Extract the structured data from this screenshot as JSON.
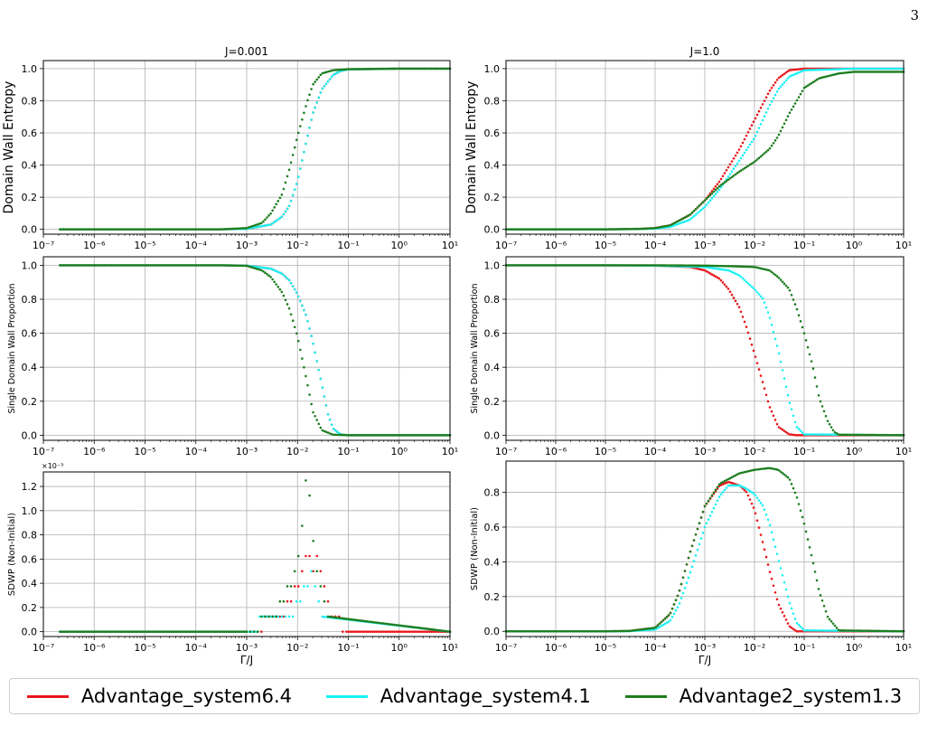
{
  "page_number": "3",
  "colors": {
    "Advantage_system6.4": "#e8161b",
    "Advantage_system4.1": "#19f1f4",
    "Advantage2_system1.3": "#1d7d1f",
    "grid": "#b0b0b0"
  },
  "legend": {
    "items": [
      {
        "label": "Advantage_system6.4",
        "color": "#e8161b"
      },
      {
        "label": "Advantage_system4.1",
        "color": "#19f1f4"
      },
      {
        "label": "Advantage2_system1.3",
        "color": "#1d7d1f"
      }
    ]
  },
  "chart_data": [
    {
      "type": "scatter",
      "panel": "row1-left",
      "title": "J=0.001",
      "xlabel": "",
      "ylabel": "Domain Wall Entropy",
      "xscale": "log",
      "xlim": [
        1e-07,
        10
      ],
      "ylim": [
        -0.03,
        1.05
      ],
      "yticks": [
        0.0,
        0.2,
        0.4,
        0.6,
        0.8,
        1.0
      ],
      "grid": true,
      "series": [
        {
          "name": "Advantage_system6.4",
          "x": [
            2e-07,
            1e-05,
            0.0003,
            0.001,
            0.003,
            0.005,
            0.007,
            0.01,
            0.015,
            0.02,
            0.03,
            0.05,
            0.07,
            0.1,
            1,
            10
          ],
          "y": [
            0,
            0,
            0,
            0.003,
            0.03,
            0.08,
            0.15,
            0.3,
            0.55,
            0.72,
            0.87,
            0.96,
            0.985,
            0.995,
            1.0,
            1.0
          ]
        },
        {
          "name": "Advantage_system4.1",
          "x": [
            2e-07,
            1e-05,
            0.0003,
            0.001,
            0.003,
            0.005,
            0.007,
            0.01,
            0.015,
            0.02,
            0.03,
            0.05,
            0.07,
            0.1,
            1,
            10
          ],
          "y": [
            0,
            0,
            0,
            0.003,
            0.03,
            0.08,
            0.15,
            0.3,
            0.55,
            0.72,
            0.87,
            0.96,
            0.985,
            0.995,
            1.0,
            1.0
          ]
        },
        {
          "name": "Advantage2_system1.3",
          "x": [
            2e-07,
            1e-05,
            0.0003,
            0.001,
            0.002,
            0.003,
            0.005,
            0.007,
            0.01,
            0.015,
            0.02,
            0.03,
            0.05,
            0.1,
            1,
            10
          ],
          "y": [
            0,
            0,
            0,
            0.008,
            0.04,
            0.1,
            0.22,
            0.38,
            0.58,
            0.78,
            0.9,
            0.97,
            0.99,
            0.997,
            1.0,
            1.0
          ]
        }
      ]
    },
    {
      "type": "scatter",
      "panel": "row1-right",
      "title": "J=1.0",
      "xlabel": "",
      "ylabel": "Domain Wall Entropy",
      "xscale": "log",
      "xlim": [
        1e-07,
        10
      ],
      "ylim": [
        -0.03,
        1.05
      ],
      "yticks": [
        0.0,
        0.2,
        0.4,
        0.6,
        0.8,
        1.0
      ],
      "grid": true,
      "series": [
        {
          "name": "Advantage_system6.4",
          "x": [
            1e-07,
            1e-05,
            5e-05,
            0.0001,
            0.0002,
            0.0005,
            0.001,
            0.002,
            0.005,
            0.01,
            0.02,
            0.03,
            0.05,
            0.1,
            1,
            10
          ],
          "y": [
            0,
            0,
            0.003,
            0.008,
            0.025,
            0.09,
            0.18,
            0.3,
            0.5,
            0.68,
            0.86,
            0.94,
            0.99,
            1.0,
            1.0,
            1.0
          ]
        },
        {
          "name": "Advantage_system4.1",
          "x": [
            1e-07,
            1e-05,
            5e-05,
            0.0001,
            0.0002,
            0.0005,
            0.001,
            0.002,
            0.005,
            0.01,
            0.02,
            0.03,
            0.05,
            0.1,
            1,
            10
          ],
          "y": [
            0,
            0,
            0.002,
            0.005,
            0.015,
            0.06,
            0.14,
            0.25,
            0.43,
            0.57,
            0.77,
            0.87,
            0.95,
            0.99,
            1.0,
            1.0
          ]
        },
        {
          "name": "Advantage2_system1.3",
          "x": [
            1e-07,
            1e-05,
            5e-05,
            0.0001,
            0.0002,
            0.0005,
            0.001,
            0.002,
            0.005,
            0.01,
            0.02,
            0.03,
            0.05,
            0.1,
            0.2,
            0.5,
            1,
            10
          ],
          "y": [
            0,
            0,
            0.003,
            0.008,
            0.025,
            0.09,
            0.18,
            0.27,
            0.36,
            0.42,
            0.5,
            0.58,
            0.72,
            0.88,
            0.94,
            0.97,
            0.98,
            0.98
          ]
        }
      ]
    },
    {
      "type": "scatter",
      "panel": "row2-left",
      "xlabel": "",
      "ylabel": "Single Domain Wall Proportion",
      "xscale": "log",
      "xlim": [
        1e-07,
        10
      ],
      "ylim": [
        -0.03,
        1.05
      ],
      "yticks": [
        0.0,
        0.2,
        0.4,
        0.6,
        0.8,
        1.0
      ],
      "grid": true,
      "series": [
        {
          "name": "Advantage_system6.4",
          "x": [
            2e-07,
            1e-05,
            0.0003,
            0.001,
            0.003,
            0.005,
            0.007,
            0.01,
            0.015,
            0.02,
            0.03,
            0.04,
            0.05,
            0.07,
            0.1,
            10
          ],
          "y": [
            1,
            1,
            1,
            0.998,
            0.98,
            0.95,
            0.91,
            0.83,
            0.7,
            0.55,
            0.3,
            0.12,
            0.04,
            0.005,
            0,
            0
          ]
        },
        {
          "name": "Advantage_system4.1",
          "x": [
            2e-07,
            1e-05,
            0.0003,
            0.001,
            0.003,
            0.005,
            0.007,
            0.01,
            0.015,
            0.02,
            0.03,
            0.04,
            0.05,
            0.07,
            0.1,
            10
          ],
          "y": [
            1,
            1,
            1,
            0.998,
            0.98,
            0.95,
            0.91,
            0.83,
            0.7,
            0.55,
            0.3,
            0.12,
            0.04,
            0.005,
            0,
            0
          ]
        },
        {
          "name": "Advantage2_system1.3",
          "x": [
            2e-07,
            1e-05,
            0.0003,
            0.001,
            0.002,
            0.003,
            0.005,
            0.007,
            0.01,
            0.015,
            0.02,
            0.03,
            0.05,
            0.1,
            10
          ],
          "y": [
            1,
            1,
            1,
            0.997,
            0.97,
            0.93,
            0.84,
            0.74,
            0.58,
            0.33,
            0.14,
            0.03,
            0.003,
            0,
            0
          ]
        }
      ]
    },
    {
      "type": "scatter",
      "panel": "row2-right",
      "xlabel": "",
      "ylabel": "Single Domain Wall Proportion",
      "xscale": "log",
      "xlim": [
        1e-07,
        10
      ],
      "ylim": [
        -0.03,
        1.05
      ],
      "yticks": [
        0.0,
        0.2,
        0.4,
        0.6,
        0.8,
        1.0
      ],
      "grid": true,
      "series": [
        {
          "name": "Advantage_system6.4",
          "x": [
            1e-07,
            1e-05,
            0.0001,
            0.0005,
            0.001,
            0.002,
            0.003,
            0.005,
            0.007,
            0.01,
            0.015,
            0.02,
            0.03,
            0.05,
            0.07,
            10
          ],
          "y": [
            1,
            1,
            0.998,
            0.99,
            0.97,
            0.92,
            0.86,
            0.75,
            0.63,
            0.48,
            0.3,
            0.17,
            0.05,
            0.005,
            0,
            0
          ]
        },
        {
          "name": "Advantage_system4.1",
          "x": [
            1e-07,
            1e-05,
            0.0001,
            0.001,
            0.003,
            0.005,
            0.007,
            0.01,
            0.015,
            0.02,
            0.03,
            0.05,
            0.07,
            0.1,
            10
          ],
          "y": [
            1,
            1,
            0.998,
            0.99,
            0.97,
            0.94,
            0.9,
            0.86,
            0.8,
            0.7,
            0.5,
            0.2,
            0.05,
            0.005,
            0
          ]
        },
        {
          "name": "Advantage2_system1.3",
          "x": [
            1e-07,
            1e-05,
            0.0001,
            0.001,
            0.003,
            0.01,
            0.02,
            0.03,
            0.05,
            0.07,
            0.1,
            0.15,
            0.2,
            0.3,
            0.4,
            0.5,
            10
          ],
          "y": [
            1,
            1,
            1,
            0.998,
            0.995,
            0.99,
            0.97,
            0.93,
            0.86,
            0.75,
            0.6,
            0.4,
            0.22,
            0.08,
            0.02,
            0.003,
            0
          ]
        }
      ]
    },
    {
      "type": "scatter",
      "panel": "row3-left",
      "xlabel": "Γ/J",
      "ylabel": "SDWP (Non-Initial)",
      "yscale_label": "×10⁻³",
      "xscale": "log",
      "xlim": [
        1e-07,
        10
      ],
      "ylim": [
        -0.04,
        1.32
      ],
      "yticks": [
        0.0,
        0.2,
        0.4,
        0.6,
        0.8,
        1.0,
        1.2
      ],
      "grid": true,
      "series": [
        {
          "name": "Advantage_system6.4",
          "x": [
            2e-07,
            0.001,
            0.005,
            0.007,
            0.01,
            0.013,
            0.016,
            0.02,
            0.025,
            0.03,
            0.04,
            0.05,
            0.1,
            10
          ],
          "y": [
            0,
            0,
            0.125,
            0.25,
            0.375,
            0.5,
            0.75,
            0.5,
            0.625,
            0.375,
            0.25,
            0.125,
            0,
            0
          ]
        },
        {
          "name": "Advantage_system4.1",
          "x": [
            2e-07,
            0.001,
            0.003,
            0.007,
            0.01,
            0.015,
            0.02,
            0.025,
            0.03,
            10
          ],
          "y": [
            0,
            0,
            0.125,
            0.125,
            0.25,
            0.375,
            0.5,
            0.25,
            0.125,
            0
          ]
        },
        {
          "name": "Advantage2_system1.3",
          "x": [
            2e-07,
            0.001,
            0.003,
            0.005,
            0.007,
            0.01,
            0.012,
            0.015,
            0.018,
            0.02,
            0.025,
            0.03,
            0.04,
            10
          ],
          "y": [
            0,
            0,
            0.125,
            0.25,
            0.375,
            0.625,
            0.875,
            1.25,
            1.125,
            0.75,
            0.5,
            0.25,
            0.125,
            0
          ]
        }
      ]
    },
    {
      "type": "scatter",
      "panel": "row3-right",
      "xlabel": "Γ/J",
      "ylabel": "SDWP (Non-Initial)",
      "xscale": "log",
      "xlim": [
        1e-07,
        10
      ],
      "ylim": [
        -0.03,
        0.98
      ],
      "yticks": [
        0.0,
        0.2,
        0.4,
        0.6,
        0.8
      ],
      "grid": true,
      "series": [
        {
          "name": "Advantage_system6.4",
          "x": [
            1e-07,
            1e-05,
            3e-05,
            0.0001,
            0.0002,
            0.0003,
            0.0005,
            0.001,
            0.002,
            0.003,
            0.005,
            0.007,
            0.01,
            0.015,
            0.02,
            0.03,
            0.05,
            0.07,
            10
          ],
          "y": [
            0,
            0,
            0.002,
            0.02,
            0.1,
            0.22,
            0.45,
            0.72,
            0.84,
            0.86,
            0.84,
            0.8,
            0.7,
            0.5,
            0.35,
            0.16,
            0.03,
            0,
            0
          ]
        },
        {
          "name": "Advantage_system4.1",
          "x": [
            1e-07,
            1e-05,
            3e-05,
            0.0001,
            0.0002,
            0.0003,
            0.0005,
            0.001,
            0.002,
            0.003,
            0.005,
            0.007,
            0.01,
            0.015,
            0.02,
            0.03,
            0.05,
            0.07,
            0.1,
            10
          ],
          "y": [
            0,
            0,
            0.001,
            0.01,
            0.06,
            0.15,
            0.33,
            0.6,
            0.78,
            0.84,
            0.84,
            0.82,
            0.79,
            0.72,
            0.62,
            0.42,
            0.17,
            0.05,
            0.005,
            0
          ]
        },
        {
          "name": "Advantage2_system1.3",
          "x": [
            1e-07,
            1e-05,
            3e-05,
            0.0001,
            0.0002,
            0.0003,
            0.0005,
            0.001,
            0.002,
            0.005,
            0.01,
            0.02,
            0.03,
            0.05,
            0.07,
            0.1,
            0.15,
            0.2,
            0.3,
            0.5,
            10
          ],
          "y": [
            0,
            0,
            0.002,
            0.02,
            0.1,
            0.22,
            0.45,
            0.72,
            0.85,
            0.91,
            0.93,
            0.94,
            0.93,
            0.88,
            0.78,
            0.62,
            0.4,
            0.23,
            0.08,
            0.005,
            0
          ]
        }
      ]
    }
  ]
}
